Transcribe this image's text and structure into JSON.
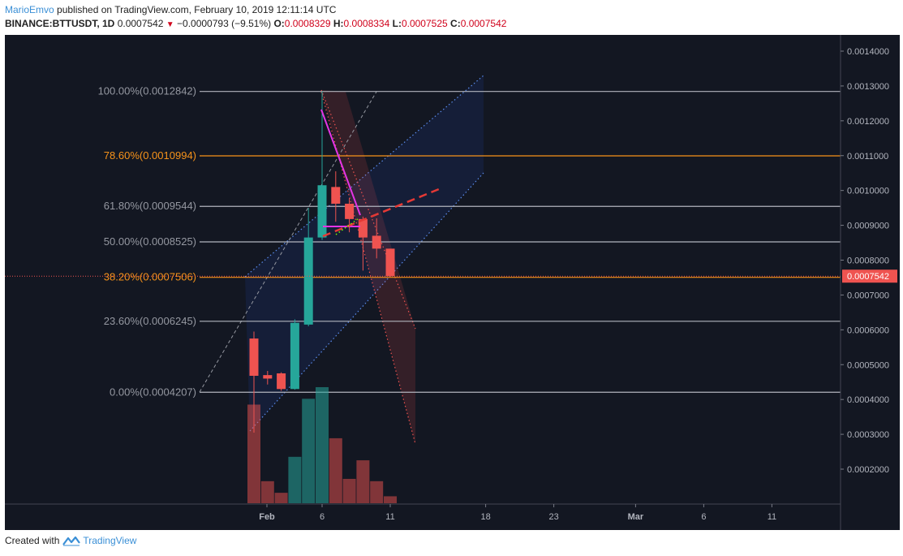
{
  "header": {
    "author": "MarioEmvo",
    "published_text": " published on TradingView.com, February 10, 2019 12:11:14 UTC",
    "symbol": "BINANCE:BTTUSDT, 1D",
    "last_price": "0.0007542",
    "change": "−0.0000793 (−9.51%)",
    "open_label": "O:",
    "open": "0.0008329",
    "high_label": "H:",
    "high": "0.0008334",
    "low_label": "L:",
    "low": "0.0007525",
    "close_label": "C:",
    "close": "0.0007542"
  },
  "footer": {
    "created_with": "Created with",
    "brand": "TradingView"
  },
  "colors": {
    "background": "#131722",
    "bull": "#26a69a",
    "bear": "#ef5350",
    "fib_gray": "#b2b5be",
    "fib_orange": "#f7931a",
    "price_tag": "#ef5350",
    "magenta": "#e535e5",
    "channel_blue": "#2962ff"
  },
  "chart_data": {
    "type": "candlestick",
    "price_axis_labels": [
      "0.0014000",
      "0.0013000",
      "0.0012000",
      "0.0011000",
      "0.0010000",
      "0.0009000",
      "0.0008000",
      "0.0007000",
      "0.0006000",
      "0.0005000",
      "0.0004000",
      "0.0003000",
      "0.0002000"
    ],
    "date_axis_labels": [
      "Feb",
      "6",
      "11",
      "18",
      "23",
      "Mar",
      "6",
      "11"
    ],
    "current_price_tag": "0.0007542",
    "candles": [
      {
        "date": "2019-02-01",
        "o": 0.000575,
        "h": 0.000595,
        "l": 0.000305,
        "c": 0.000468
      },
      {
        "date": "2019-02-02",
        "o": 0.00047,
        "h": 0.000482,
        "l": 0.000443,
        "c": 0.00046
      },
      {
        "date": "2019-02-03",
        "o": 0.000475,
        "h": 0.000478,
        "l": 0.000425,
        "c": 0.00043
      },
      {
        "date": "2019-02-04",
        "o": 0.00043,
        "h": 0.00063,
        "l": 0.000428,
        "c": 0.00062
      },
      {
        "date": "2019-02-05",
        "o": 0.000615,
        "h": 0.00095,
        "l": 0.00061,
        "c": 0.000865
      },
      {
        "date": "2019-02-06",
        "o": 0.000865,
        "h": 0.001285,
        "l": 0.000858,
        "c": 0.001015
      },
      {
        "date": "2019-02-07",
        "o": 0.00101,
        "h": 0.001055,
        "l": 0.00091,
        "c": 0.000962
      },
      {
        "date": "2019-02-08",
        "o": 0.000962,
        "h": 0.000978,
        "l": 0.00088,
        "c": 0.000918
      },
      {
        "date": "2019-02-09",
        "o": 0.000918,
        "h": 0.000925,
        "l": 0.00077,
        "c": 0.000865
      },
      {
        "date": "2019-02-10",
        "o": 0.00087,
        "h": 0.00092,
        "l": 0.000805,
        "c": 0.000833
      },
      {
        "date": "2019-02-11",
        "o": 0.000833,
        "h": 0.000833,
        "l": 0.000752,
        "c": 0.000754
      }
    ],
    "volume_relative": [
      0.85,
      0.19,
      0.09,
      0.4,
      0.9,
      1.0,
      0.56,
      0.21,
      0.37,
      0.19,
      0.06
    ],
    "volume_bull": [
      false,
      false,
      false,
      true,
      true,
      true,
      false,
      false,
      false,
      false,
      false
    ],
    "fib_levels": [
      {
        "label": "100.00%(0.0012842)",
        "price": 0.0012842,
        "color": "gray"
      },
      {
        "label": "78.60%(0.0010994)",
        "price": 0.0010994,
        "color": "orange"
      },
      {
        "label": "61.80%(0.0009544)",
        "price": 0.0009544,
        "color": "gray"
      },
      {
        "label": "50.00%(0.0008525)",
        "price": 0.0008525,
        "color": "gray"
      },
      {
        "label": "38.20%(0.0007506)",
        "price": 0.0007506,
        "color": "orange"
      },
      {
        "label": "23.60%(0.0006245)",
        "price": 0.0006245,
        "color": "gray"
      },
      {
        "label": "0.00%(0.0004207)",
        "price": 0.0004207,
        "color": "gray"
      }
    ],
    "grid": false
  }
}
